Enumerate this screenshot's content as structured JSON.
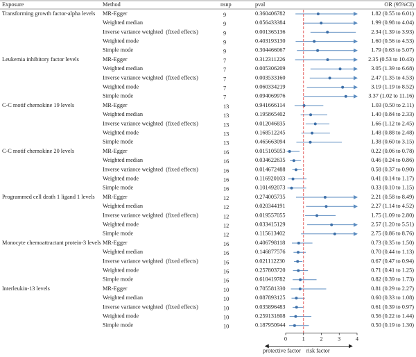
{
  "chart_data": {
    "type": "forest",
    "headers": {
      "exposure": "Exposure",
      "method": "Method",
      "nsnp": "nsnp",
      "pval": "pval",
      "or": "OR (95%CI)"
    },
    "xlim": [
      0,
      4
    ],
    "xticks": [
      0,
      1,
      2,
      3,
      4
    ],
    "ref": 1,
    "left_label": "protective factor",
    "right_label": "risk factor",
    "point_color": "#3d6fa8",
    "ci_color": "#5b8cc0",
    "ref_color": "#e05050",
    "groups": [
      {
        "exposure": "Transforming growth factor-alpha levels",
        "rows": [
          {
            "method": "MR-Egger",
            "nsnp": 9,
            "pval": "0.360406782",
            "or": 1.82,
            "lower": 0.55,
            "upper": 6.01,
            "or_label": "1.82 (0.55 to 6.01)"
          },
          {
            "method": "Weighted median",
            "nsnp": 9,
            "pval": "0.056433384",
            "or": 1.99,
            "lower": 0.98,
            "upper": 4.04,
            "or_label": "1.99 (0.98 to 4.04)"
          },
          {
            "method": "Inverse variance weighted  (fixed effects)",
            "nsnp": 9,
            "pval": "0.001365136",
            "or": 2.34,
            "lower": 1.39,
            "upper": 3.93,
            "or_label": "2.34 (1.39 to 3.93)"
          },
          {
            "method": "Weighted mode",
            "nsnp": 9,
            "pval": "0.403193130",
            "or": 1.6,
            "lower": 0.56,
            "upper": 4.53,
            "or_label": "1.60 (0.56 to 4.53)"
          },
          {
            "method": "Simple mode",
            "nsnp": 9,
            "pval": "0.304466067",
            "or": 1.79,
            "lower": 0.63,
            "upper": 5.07,
            "or_label": "1.79 (0.63 to 5.07)"
          }
        ]
      },
      {
        "exposure": "Leukemia inhibitory factor levels",
        "rows": [
          {
            "method": "MR-Egger",
            "nsnp": 7,
            "pval": "0.312311226",
            "or": 2.35,
            "lower": 0.53,
            "upper": 10.43,
            "or_label": "2.35 (0.53 to 10.43)"
          },
          {
            "method": "Weighted median",
            "nsnp": 7,
            "pval": "0.005306209",
            "or": 3.05,
            "lower": 1.39,
            "upper": 6.68,
            "or_label": "3.05 (1.39 to 6.68)"
          },
          {
            "method": "Inverse variance weighted  (fixed effects)",
            "nsnp": 7,
            "pval": "0.003533160",
            "or": 2.47,
            "lower": 1.35,
            "upper": 4.53,
            "or_label": "2.47 (1.35 to 4.53)"
          },
          {
            "method": "Weighted mode",
            "nsnp": 7,
            "pval": "0.060334219",
            "or": 3.19,
            "lower": 1.19,
            "upper": 8.52,
            "or_label": "3.19 (1.19 to 8.52)"
          },
          {
            "method": "Simple mode",
            "nsnp": 7,
            "pval": "0.094069976",
            "or": 3.37,
            "lower": 1.02,
            "upper": 11.16,
            "or_label": "3.37 (1.02 to 11.16)"
          }
        ]
      },
      {
        "exposure": "C-C motif chemokine 19 levels",
        "rows": [
          {
            "method": "MR-Egger",
            "nsnp": 13,
            "pval": "0.941666114",
            "or": 1.03,
            "lower": 0.5,
            "upper": 2.11,
            "or_label": "1.03 (0.50 to 2.11)"
          },
          {
            "method": "Weighted median",
            "nsnp": 13,
            "pval": "0.195865402",
            "or": 1.4,
            "lower": 0.84,
            "upper": 2.33,
            "or_label": "1.40 (0.84 to 2.33)"
          },
          {
            "method": "Inverse variance weighted  (fixed effects)",
            "nsnp": 13,
            "pval": "0.012046835",
            "or": 1.66,
            "lower": 1.12,
            "upper": 2.45,
            "or_label": "1.66 (1.12 to 2.45)"
          },
          {
            "method": "Weighted mode",
            "nsnp": 13,
            "pval": "0.168512245",
            "or": 1.48,
            "lower": 0.88,
            "upper": 2.48,
            "or_label": "1.48 (0.88 to 2.48)"
          },
          {
            "method": "Simple mode",
            "nsnp": 13,
            "pval": "0.465663094",
            "or": 1.38,
            "lower": 0.6,
            "upper": 3.15,
            "or_label": "1.38 (0.60 to 3.15)"
          }
        ]
      },
      {
        "exposure": "C-C motif chemokine 20 levels",
        "rows": [
          {
            "method": "MR-Egger",
            "nsnp": 16,
            "pval": "0.015105053",
            "or": 0.22,
            "lower": 0.06,
            "upper": 0.78,
            "or_label": "0.22 (0.06 to 0.78)"
          },
          {
            "method": "Weighted median",
            "nsnp": 16,
            "pval": "0.034622635",
            "or": 0.46,
            "lower": 0.24,
            "upper": 0.86,
            "or_label": "0.46 (0.24 to 0.86)"
          },
          {
            "method": "Inverse variance weighted  (fixed effects)",
            "nsnp": 16,
            "pval": "0.014672488",
            "or": 0.58,
            "lower": 0.37,
            "upper": 0.9,
            "or_label": "0.58 (0.37 to 0.90)"
          },
          {
            "method": "Weighted mode",
            "nsnp": 16,
            "pval": "0.116920103",
            "or": 0.41,
            "lower": 0.14,
            "upper": 1.17,
            "or_label": "0.41 (0.14 to 1.17)"
          },
          {
            "method": "Simple mode",
            "nsnp": 16,
            "pval": "0.101492073",
            "or": 0.33,
            "lower": 0.1,
            "upper": 1.15,
            "or_label": "0.33 (0.10 to 1.15)"
          }
        ]
      },
      {
        "exposure": "Programmed cell death 1 ligand 1 levels",
        "rows": [
          {
            "method": "MR-Egger",
            "nsnp": 12,
            "pval": "0.274005735",
            "or": 2.21,
            "lower": 0.58,
            "upper": 8.49,
            "or_label": "2.21 (0.58 to 8.49)"
          },
          {
            "method": "Weighted median",
            "nsnp": 12,
            "pval": "0.020344191",
            "or": 2.27,
            "lower": 1.14,
            "upper": 4.52,
            "or_label": "2.27 (1.14 to 4.52)"
          },
          {
            "method": "Inverse variance weighted  (fixed effects)",
            "nsnp": 12,
            "pval": "0.019557055",
            "or": 1.75,
            "lower": 1.09,
            "upper": 2.8,
            "or_label": "1.75 (1.09 to 2.80)"
          },
          {
            "method": "Weighted mode",
            "nsnp": 12,
            "pval": "0.033415129",
            "or": 2.57,
            "lower": 1.2,
            "upper": 5.51,
            "or_label": "2.57 (1.20 to 5.51)"
          },
          {
            "method": "Simple mode",
            "nsnp": 12,
            "pval": "0.115613402",
            "or": 2.75,
            "lower": 0.86,
            "upper": 8.76,
            "or_label": "2.75 (0.86 to 8.76)"
          }
        ]
      },
      {
        "exposure": "Monocyte chemoattractant protein-3 levels",
        "rows": [
          {
            "method": "MR-Egger",
            "nsnp": 16,
            "pval": "0.406798118",
            "or": 0.73,
            "lower": 0.35,
            "upper": 1.5,
            "or_label": "0.73 (0.35 to 1.50)"
          },
          {
            "method": "Weighted median",
            "nsnp": 16,
            "pval": "0.146877576",
            "or": 0.7,
            "lower": 0.44,
            "upper": 1.13,
            "or_label": "0.70 (0.44 to 1.13)"
          },
          {
            "method": "Inverse variance weighted  (fixed effects)",
            "nsnp": 16,
            "pval": "0.021112230",
            "or": 0.67,
            "lower": 0.47,
            "upper": 0.94,
            "or_label": "0.67 (0.47 to 0.94)"
          },
          {
            "method": "Weighted mode",
            "nsnp": 16,
            "pval": "0.257803720",
            "or": 0.71,
            "lower": 0.41,
            "upper": 1.25,
            "or_label": "0.71 (0.41 to 1.25)"
          },
          {
            "method": "Simple mode",
            "nsnp": 16,
            "pval": "0.610419782",
            "or": 0.82,
            "lower": 0.39,
            "upper": 1.73,
            "or_label": "0.82 (0.39 to 1.73)"
          }
        ]
      },
      {
        "exposure": "Interleukin-13 levels",
        "rows": [
          {
            "method": "MR-Egger",
            "nsnp": 10,
            "pval": "0.705581330",
            "or": 0.81,
            "lower": 0.29,
            "upper": 2.27,
            "or_label": "0.81 (0.29 to 2.27)"
          },
          {
            "method": "Weighted median",
            "nsnp": 10,
            "pval": "0.087893125",
            "or": 0.6,
            "lower": 0.33,
            "upper": 1.08,
            "or_label": "0.60 (0.33 to 1.08)"
          },
          {
            "method": "Inverse variance weighted  (fixed effects)",
            "nsnp": 10,
            "pval": "0.035896483",
            "or": 0.61,
            "lower": 0.39,
            "upper": 0.97,
            "or_label": "0.61 (0.39 to 0.97)"
          },
          {
            "method": "Weighted mode",
            "nsnp": 10,
            "pval": "0.259131808",
            "or": 0.56,
            "lower": 0.22,
            "upper": 1.44,
            "or_label": "0.56 (0.22 to 1.44)"
          },
          {
            "method": "Simple mode",
            "nsnp": 10,
            "pval": "0.187950944",
            "or": 0.5,
            "lower": 0.19,
            "upper": 1.3,
            "or_label": "0.50 (0.19 to 1.30)"
          }
        ]
      }
    ]
  }
}
